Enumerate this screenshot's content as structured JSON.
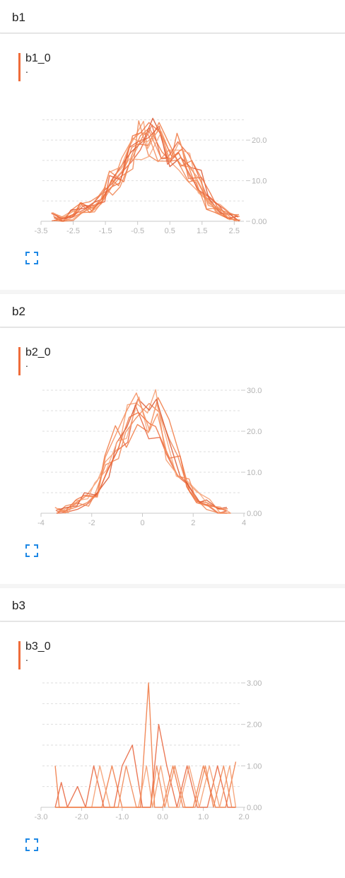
{
  "colors": {
    "accent": "#ef6c3a",
    "line": "#f0773f",
    "expand": "#1e88e5",
    "grid": "#dddddd"
  },
  "sections": [
    {
      "title": "b1",
      "card": {
        "tag": "b1_0",
        "subtitle": ".",
        "chart_data": {
          "type": "line",
          "title": "b1_0",
          "xlim": [
            -3.5,
            2.8
          ],
          "ylim": [
            0,
            27
          ],
          "xticks": [
            "-3.5",
            "-2.5",
            "-1.5",
            "-0.5",
            "0.5",
            "1.5",
            "2.5"
          ],
          "xtick_values": [
            -3.5,
            -2.5,
            -1.5,
            -0.5,
            0.5,
            1.5,
            2.5
          ],
          "yticks": [
            "0.00",
            "10.0",
            "20.0"
          ],
          "ytick_values": [
            0,
            10,
            20
          ],
          "gridlines": [
            5,
            10,
            15,
            20,
            25
          ],
          "series_count": 12,
          "base_x": [
            -3.1,
            -2.8,
            -2.5,
            -2.2,
            -1.9,
            -1.6,
            -1.3,
            -1.0,
            -0.7,
            -0.4,
            -0.1,
            0.2,
            0.5,
            0.8,
            1.1,
            1.4,
            1.7,
            2.0,
            2.3,
            2.6
          ],
          "base_y": [
            1.0,
            0.3,
            1.5,
            3.0,
            4.0,
            6.0,
            9.5,
            12.0,
            17.0,
            20.5,
            21.0,
            19.5,
            18.0,
            17.0,
            13.5,
            9.5,
            5.0,
            3.0,
            1.5,
            0.7
          ]
        }
      }
    },
    {
      "title": "b2",
      "card": {
        "tag": "b2_0",
        "subtitle": ".",
        "chart_data": {
          "type": "line",
          "title": "b2_0",
          "xlim": [
            -4,
            4
          ],
          "ylim": [
            0,
            30
          ],
          "xticks": [
            "-4",
            "-2",
            "0",
            "2",
            "4"
          ],
          "xtick_values": [
            -4,
            -2,
            0,
            2,
            4
          ],
          "yticks": [
            "0.00",
            "10.0",
            "20.0",
            "30.0"
          ],
          "ytick_values": [
            0,
            10,
            20,
            30
          ],
          "gridlines": [
            5,
            10,
            15,
            20,
            25,
            30
          ],
          "series_count": 8,
          "base_x": [
            -3.4,
            -3.0,
            -2.6,
            -2.2,
            -1.8,
            -1.4,
            -1.0,
            -0.6,
            -0.2,
            0.2,
            0.6,
            1.0,
            1.4,
            1.8,
            2.2,
            2.6,
            3.0,
            3.4
          ],
          "base_y": [
            0.5,
            1.0,
            2.0,
            3.5,
            6.0,
            11.0,
            17.0,
            22.0,
            24.0,
            22.0,
            24.0,
            18.0,
            12.0,
            6.5,
            3.5,
            2.0,
            0.8,
            0.4
          ]
        }
      }
    },
    {
      "title": "b3",
      "card": {
        "tag": "b3_0",
        "subtitle": ".",
        "chart_data": {
          "type": "line",
          "title": "b3_0",
          "xlim": [
            -3.0,
            2.0
          ],
          "ylim": [
            0,
            3.0
          ],
          "xticks": [
            "-3.0",
            "-2.0",
            "-1.0",
            "0.0",
            "1.0",
            "2.0"
          ],
          "xtick_values": [
            -3.0,
            -2.0,
            -1.0,
            0.0,
            1.0,
            2.0
          ],
          "yticks": [
            "0.00",
            "1.00",
            "2.00",
            "3.00"
          ],
          "ytick_values": [
            0,
            1,
            2,
            3
          ],
          "gridlines": [
            0.5,
            1.0,
            1.5,
            2.0,
            2.5,
            3.0
          ],
          "series": [
            {
              "x": [
                -2.65,
                -2.55,
                -2.4,
                -2.2,
                -1.95,
                -1.75,
                -1.5,
                -1.25,
                -1.0,
                -0.8,
                -0.55,
                -0.35,
                -0.2,
                0.0,
                0.25,
                0.5,
                0.75,
                1.0,
                1.3,
                1.55,
                1.8
              ],
              "y": [
                1.0,
                0.0,
                0.0,
                0.0,
                0.0,
                0.0,
                0.0,
                1.0,
                0.0,
                0.0,
                0.0,
                3.0,
                0.0,
                0.0,
                1.0,
                0.0,
                0.0,
                1.0,
                0.0,
                0.0,
                1.1
              ]
            },
            {
              "x": [
                -2.65,
                -2.5,
                -2.35,
                -2.1,
                -1.9,
                -1.7,
                -1.45,
                -1.2,
                -1.0,
                -0.75,
                -0.5,
                -0.3,
                -0.1,
                0.1,
                0.35,
                0.6,
                0.85,
                1.1,
                1.35,
                1.6,
                1.8
              ],
              "y": [
                0.0,
                0.6,
                0.0,
                0.5,
                0.0,
                1.0,
                0.0,
                0.0,
                1.0,
                1.5,
                0.0,
                0.0,
                2.0,
                1.0,
                0.0,
                1.0,
                0.0,
                0.0,
                1.0,
                0.0,
                0.0
              ]
            },
            {
              "x": [
                -2.65,
                -2.45,
                -2.2,
                -2.0,
                -1.75,
                -1.55,
                -1.3,
                -1.1,
                -0.85,
                -0.6,
                -0.4,
                -0.25,
                -0.05,
                0.15,
                0.4,
                0.65,
                0.9,
                1.15,
                1.4,
                1.65,
                1.8
              ],
              "y": [
                0.0,
                0.0,
                0.0,
                0.0,
                0.0,
                1.0,
                0.0,
                0.0,
                0.0,
                0.0,
                1.0,
                0.0,
                1.0,
                0.0,
                0.0,
                1.0,
                0.0,
                1.0,
                0.0,
                1.0,
                0.0
              ]
            },
            {
              "x": [
                -2.65,
                -2.35,
                -2.05,
                -1.8,
                -1.6,
                -1.35,
                -1.1,
                -0.9,
                -0.65,
                -0.45,
                -0.3,
                -0.15,
                0.05,
                0.3,
                0.55,
                0.8,
                1.05,
                1.25,
                1.5,
                1.7,
                1.8
              ],
              "y": [
                0.0,
                0.0,
                0.0,
                0.0,
                0.0,
                0.0,
                0.0,
                1.0,
                0.0,
                0.0,
                0.0,
                1.0,
                0.0,
                1.0,
                0.0,
                0.0,
                1.0,
                0.0,
                1.0,
                0.0,
                0.0
              ]
            }
          ]
        }
      }
    }
  ]
}
